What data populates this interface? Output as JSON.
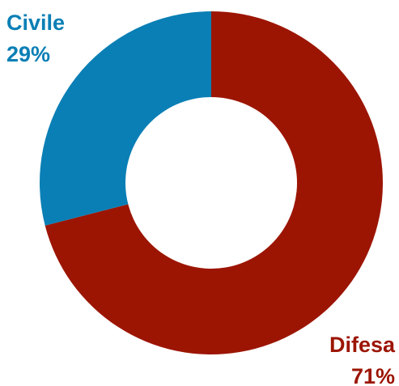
{
  "chart_data": {
    "type": "pie",
    "variant": "donut",
    "grid": false,
    "legend": "none",
    "slices": [
      {
        "label": "Civile",
        "value": 29,
        "value_label": "29%",
        "color": "#0a7fb5"
      },
      {
        "label": "Difesa",
        "value": 71,
        "value_label": "71%",
        "color": "#9c1503"
      }
    ]
  }
}
